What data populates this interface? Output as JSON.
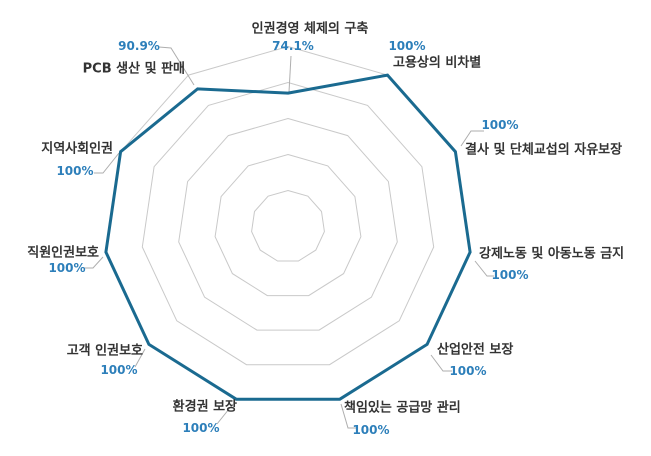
{
  "chart_data": {
    "type": "radar",
    "title": "",
    "legend": "none",
    "axis_order": "clockwise-from-top",
    "categories": [
      "인권경영 체제의 구축",
      "고용상의 비차별",
      "결사 및 단체교섭의 자유보장",
      "강제노동 및 아동노동 금지",
      "산업안전 보장",
      "책임있는 공급망 관리",
      "환경권 보장",
      "고객 인권보호",
      "직원인권보호",
      "지역사회인권",
      "PCB 생산 및 판매"
    ],
    "values": [
      74.1,
      100,
      100,
      100,
      100,
      100,
      100,
      100,
      100,
      100,
      90.9
    ],
    "value_labels": [
      "74.1%",
      "100%",
      "100%",
      "100%",
      "100%",
      "100%",
      "100%",
      "100%",
      "100%",
      "100%",
      "90.9%"
    ],
    "scale": {
      "min": 0,
      "max": 100,
      "unit": "%",
      "rings": [
        20,
        40,
        60,
        80,
        100
      ],
      "grid": "on"
    },
    "colors": {
      "series_line": "#1a6a90",
      "grid_line": "#c9c9c9",
      "leader_line": "#aeaeae",
      "category_label": "#333333",
      "value_label": "#2d7fba",
      "background": "#ffffff"
    }
  }
}
